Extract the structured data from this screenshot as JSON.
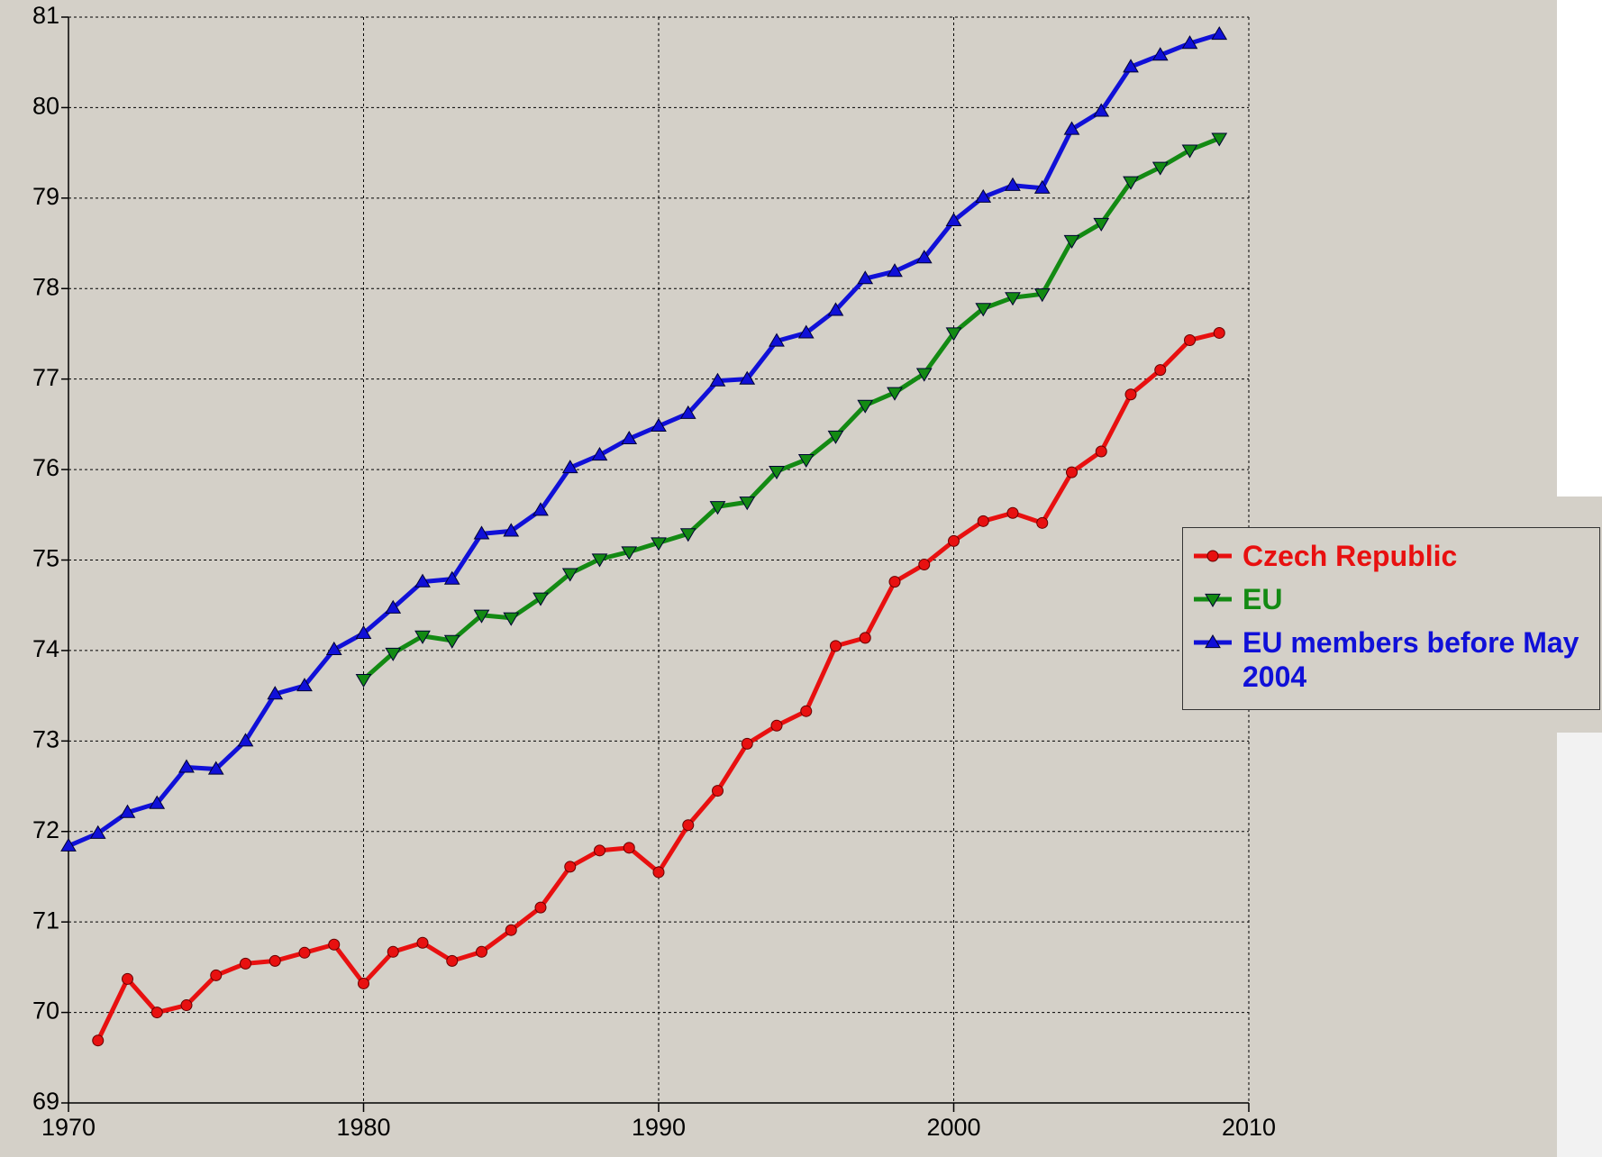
{
  "chart_data": {
    "type": "line",
    "x": [
      1970,
      1971,
      1972,
      1973,
      1974,
      1975,
      1976,
      1977,
      1978,
      1979,
      1980,
      1981,
      1982,
      1983,
      1984,
      1985,
      1986,
      1987,
      1988,
      1989,
      1990,
      1991,
      1992,
      1993,
      1994,
      1995,
      1996,
      1997,
      1998,
      1999,
      2000,
      2001,
      2002,
      2003,
      2004,
      2005,
      2006,
      2007,
      2008,
      2009
    ],
    "series": [
      {
        "name": "Czech Republic",
        "color": "#e81010",
        "marker": "circle",
        "values": [
          null,
          69.69,
          70.37,
          70.0,
          70.08,
          70.41,
          70.54,
          70.57,
          70.66,
          70.75,
          70.32,
          70.67,
          70.77,
          70.57,
          70.67,
          70.91,
          71.16,
          71.61,
          71.79,
          71.82,
          71.55,
          72.07,
          72.45,
          72.97,
          73.17,
          73.33,
          74.05,
          74.14,
          74.76,
          74.95,
          75.21,
          75.43,
          75.52,
          75.41,
          75.97,
          76.2,
          76.83,
          77.1,
          77.43,
          77.51
        ]
      },
      {
        "name": "EU",
        "color": "#138a13",
        "marker": "triangle-down",
        "values": [
          null,
          null,
          null,
          null,
          null,
          null,
          null,
          null,
          null,
          null,
          73.68,
          73.97,
          74.16,
          74.11,
          74.39,
          74.36,
          74.58,
          74.85,
          75.01,
          75.09,
          75.19,
          75.29,
          75.59,
          75.64,
          75.98,
          76.11,
          76.37,
          76.71,
          76.85,
          77.06,
          77.51,
          77.78,
          77.9,
          77.94,
          78.53,
          78.72,
          79.18,
          79.34,
          79.53,
          79.66
        ]
      },
      {
        "name": "EU members before May 2004",
        "color": "#1010d8",
        "marker": "triangle-up",
        "values": [
          71.84,
          71.98,
          72.21,
          72.31,
          72.71,
          72.69,
          73.0,
          73.52,
          73.61,
          74.01,
          74.19,
          74.47,
          74.76,
          74.79,
          75.29,
          75.32,
          75.55,
          76.02,
          76.16,
          76.34,
          76.48,
          76.62,
          76.98,
          77.0,
          77.42,
          77.51,
          77.76,
          78.11,
          78.19,
          78.34,
          78.75,
          79.01,
          79.14,
          79.11,
          79.76,
          79.96,
          80.45,
          80.58,
          80.71,
          80.81
        ]
      }
    ],
    "xlim": [
      1970,
      2010
    ],
    "xticks": [
      1970,
      1980,
      1990,
      2000,
      2010
    ],
    "ylim": [
      69,
      81
    ],
    "yticks": [
      69,
      70,
      71,
      72,
      73,
      74,
      75,
      76,
      77,
      78,
      79,
      80,
      81
    ],
    "grid": true,
    "legend": "right"
  }
}
